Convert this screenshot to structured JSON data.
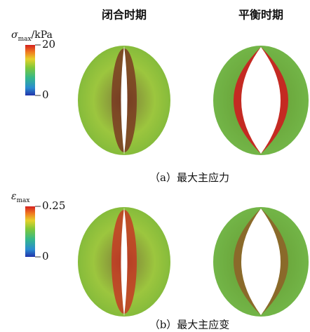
{
  "columns": [
    "闭合时期",
    "平衡时期"
  ],
  "panels": [
    {
      "caption": "（a）最大主应力",
      "colorbar": {
        "symbol": "σ",
        "subscript": "max",
        "unit": "/kPa",
        "max": 20,
        "min": 0
      }
    },
    {
      "caption": "（b）最大主应变",
      "colorbar": {
        "symbol": "ε",
        "subscript": "max",
        "unit": "",
        "max": 0.25,
        "min": 0
      }
    }
  ]
}
